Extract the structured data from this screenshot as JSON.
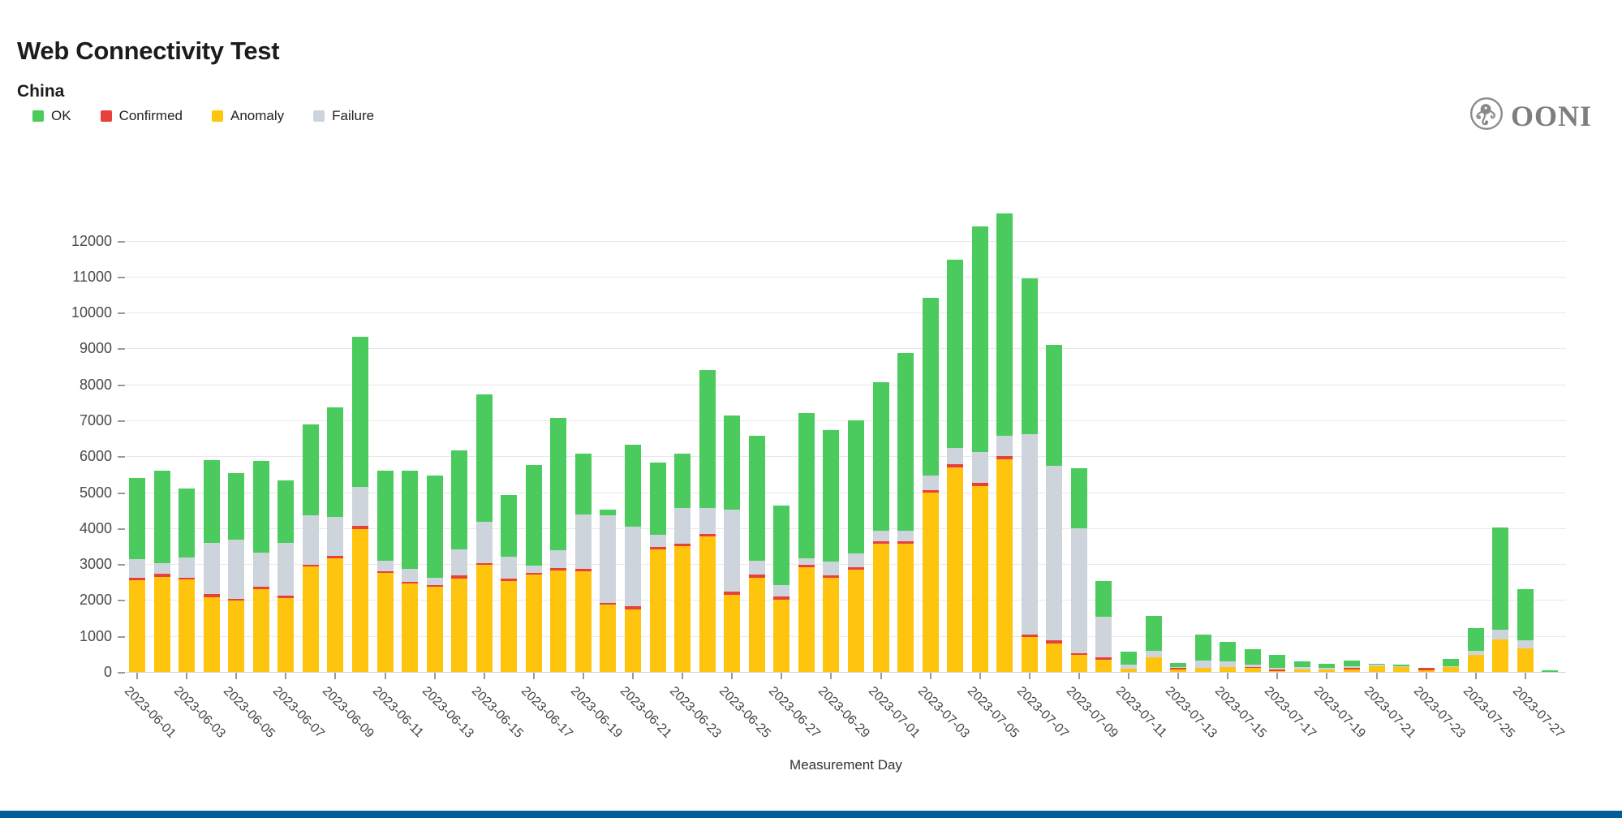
{
  "header": {
    "title": "Web Connectivity Test",
    "subtitle": "China"
  },
  "legend": {
    "items": [
      {
        "label": "OK",
        "color": "#4BCB5D"
      },
      {
        "label": "Confirmed",
        "color": "#E8413C"
      },
      {
        "label": "Anomaly",
        "color": "#FFC40D"
      },
      {
        "label": "Failure",
        "color": "#CDD4DC"
      }
    ]
  },
  "logo": {
    "wordmark": "OONI"
  },
  "footer": {
    "color": "#005d99"
  },
  "chart_data": {
    "type": "bar",
    "stacked": true,
    "grid": "horizontal",
    "legend_position": "top-left",
    "title": "Web Connectivity Test",
    "subtitle": "China",
    "xlabel": "Measurement Day",
    "ylabel": "",
    "ylim": [
      0,
      13050
    ],
    "yticks": [
      0,
      1000,
      2000,
      3000,
      4000,
      5000,
      6000,
      7000,
      8000,
      9000,
      10000,
      11000,
      12000
    ],
    "xtick_every": 2,
    "x": [
      "2023-06-01",
      "2023-06-02",
      "2023-06-03",
      "2023-06-04",
      "2023-06-05",
      "2023-06-06",
      "2023-06-07",
      "2023-06-08",
      "2023-06-09",
      "2023-06-10",
      "2023-06-11",
      "2023-06-12",
      "2023-06-13",
      "2023-06-14",
      "2023-06-15",
      "2023-06-16",
      "2023-06-17",
      "2023-06-18",
      "2023-06-19",
      "2023-06-20",
      "2023-06-21",
      "2023-06-22",
      "2023-06-23",
      "2023-06-24",
      "2023-06-25",
      "2023-06-26",
      "2023-06-27",
      "2023-06-28",
      "2023-06-29",
      "2023-06-30",
      "2023-07-01",
      "2023-07-02",
      "2023-07-03",
      "2023-07-04",
      "2023-07-05",
      "2023-07-06",
      "2023-07-07",
      "2023-07-08",
      "2023-07-09",
      "2023-07-10",
      "2023-07-11",
      "2023-07-12",
      "2023-07-13",
      "2023-07-14",
      "2023-07-15",
      "2023-07-16",
      "2023-07-17",
      "2023-07-18",
      "2023-07-19",
      "2023-07-20",
      "2023-07-21",
      "2023-07-22",
      "2023-07-23",
      "2023-07-24",
      "2023-07-25",
      "2023-07-26",
      "2023-07-27",
      "2023-07-28"
    ],
    "series": [
      {
        "name": "Anomaly",
        "color": "#FFC40D",
        "values": [
          2550,
          2650,
          2570,
          2070,
          1990,
          2300,
          2060,
          2930,
          3150,
          3980,
          2760,
          2460,
          2370,
          2590,
          2970,
          2530,
          2710,
          2830,
          2810,
          1870,
          1730,
          3410,
          3510,
          3780,
          2150,
          2630,
          2010,
          2910,
          2620,
          2850,
          3560,
          3570,
          4990,
          5690,
          5160,
          5920,
          970,
          790,
          470,
          340,
          100,
          410,
          70,
          110,
          135,
          120,
          30,
          75,
          70,
          68,
          150,
          140,
          45,
          140,
          470,
          910,
          655,
          0
        ]
      },
      {
        "name": "Confirmed",
        "color": "#E8413C",
        "values": [
          70,
          80,
          60,
          90,
          40,
          60,
          60,
          60,
          70,
          80,
          50,
          50,
          55,
          90,
          50,
          60,
          50,
          60,
          55,
          60,
          90,
          60,
          60,
          70,
          75,
          80,
          95,
          60,
          60,
          60,
          80,
          60,
          70,
          90,
          90,
          90,
          80,
          80,
          60,
          60,
          0,
          0,
          45,
          0,
          0,
          25,
          45,
          0,
          0,
          37,
          0,
          0,
          70,
          0,
          0,
          0,
          0,
          0
        ]
      },
      {
        "name": "Failure",
        "color": "#CDD4DC",
        "values": [
          510,
          300,
          550,
          1440,
          1660,
          970,
          1460,
          1360,
          1100,
          1090,
          290,
          350,
          200,
          720,
          1150,
          620,
          190,
          490,
          1515,
          2420,
          2230,
          340,
          1000,
          720,
          2300,
          390,
          315,
          200,
          400,
          390,
          300,
          300,
          410,
          460,
          860,
          570,
          5560,
          4860,
          3470,
          1140,
          110,
          180,
          15,
          200,
          160,
          60,
          40,
          70,
          40,
          45,
          45,
          20,
          0,
          25,
          115,
          270,
          225,
          0
        ]
      },
      {
        "name": "OK",
        "color": "#4BCB5D",
        "values": [
          2270,
          2580,
          1920,
          2290,
          1850,
          2530,
          1750,
          2540,
          3030,
          4170,
          2510,
          2750,
          2835,
          2770,
          3550,
          1720,
          2800,
          3690,
          1690,
          170,
          2270,
          2010,
          1500,
          3820,
          2615,
          3480,
          2200,
          4040,
          3650,
          3700,
          4130,
          4950,
          4950,
          5230,
          6280,
          6170,
          4340,
          3360,
          1670,
          980,
          350,
          970,
          125,
          720,
          545,
          425,
          365,
          155,
          125,
          173,
          40,
          45,
          0,
          205,
          635,
          2845,
          1423,
          45
        ]
      }
    ]
  }
}
